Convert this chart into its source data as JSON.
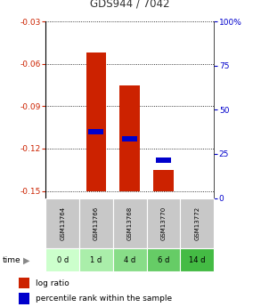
{
  "title": "GDS944 / 7042",
  "categories": [
    "GSM13764",
    "GSM13766",
    "GSM13768",
    "GSM13770",
    "GSM13772"
  ],
  "time_labels": [
    "0 d",
    "1 d",
    "4 d",
    "6 d",
    "14 d"
  ],
  "log_ratio_values": [
    null,
    -0.052,
    -0.075,
    -0.135,
    null
  ],
  "log_ratio_base": -0.15,
  "percentile_values": [
    null,
    -0.108,
    -0.113,
    -0.128,
    null
  ],
  "ylim_left": [
    -0.155,
    -0.03
  ],
  "yticks_left": [
    -0.15,
    -0.12,
    -0.09,
    -0.06,
    -0.03
  ],
  "yticks_right": [
    0,
    25,
    50,
    75,
    100
  ],
  "ylim_right": [
    0,
    100
  ],
  "bar_color": "#cc2200",
  "percentile_color": "#0000cc",
  "title_color": "#333333",
  "left_tick_color": "#cc2200",
  "right_tick_color": "#0000cc",
  "gsm_bg_color": "#c8c8c8",
  "time_bg_colors": [
    "#ccffcc",
    "#aaeeaa",
    "#88dd88",
    "#66cc66",
    "#44bb44"
  ],
  "legend_log_ratio": "log ratio",
  "legend_percentile": "percentile rank within the sample"
}
